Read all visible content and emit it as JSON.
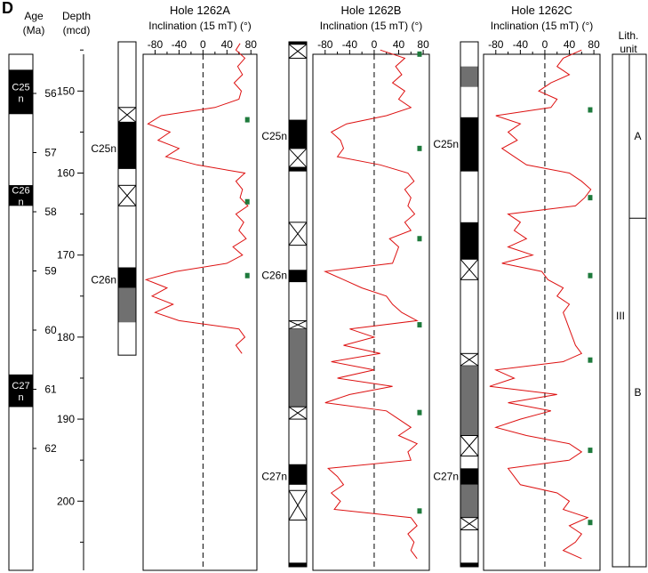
{
  "panel_label": "D",
  "header": {
    "age_label": "Age",
    "age_unit": "(Ma)",
    "depth_label": "Depth",
    "depth_unit": "(mcd)",
    "lith_label": "Lith.",
    "lith_unit": "unit"
  },
  "colors": {
    "normal": "#000000",
    "uncertain": "#707070",
    "curve": "#dd1111",
    "marker": "#1e7a3c"
  },
  "age_axis": {
    "ticks": [
      56,
      57,
      58,
      59,
      60,
      61,
      62
    ],
    "chrons": [
      {
        "label1": "C25",
        "label2": "n",
        "from": 55.6,
        "to": 56.35
      },
      {
        "label1": "C26",
        "label2": "n",
        "from": 57.55,
        "to": 57.9
      },
      {
        "label1": "C27",
        "label2": "n",
        "from": 60.75,
        "to": 61.3
      }
    ]
  },
  "depth_axis": {
    "ticks": [
      150,
      160,
      170,
      180,
      190,
      200
    ],
    "range": [
      144,
      208
    ]
  },
  "lith_units": {
    "major": "III",
    "sub": [
      {
        "label": "A",
        "from": 144,
        "to": 165.5
      },
      {
        "label": "B",
        "from": 165.5,
        "to": 208
      }
    ]
  },
  "chart_data": [
    {
      "type": "line",
      "title": "Hole 1262A",
      "xlabel": "Inclination (15 mT) (°)",
      "xticks": [
        -80,
        -40,
        0,
        40,
        80
      ],
      "xlim": [
        -100,
        90
      ],
      "ylim": [
        144,
        208
      ],
      "chron_labels": [
        {
          "text": "C25n",
          "depth": 157
        },
        {
          "text": "C26n",
          "depth": 173
        }
      ],
      "polarity": [
        {
          "from": 144,
          "to": 152,
          "kind": "white"
        },
        {
          "from": 152,
          "to": 153.8,
          "kind": "x"
        },
        {
          "from": 153.8,
          "to": 159.5,
          "kind": "normal"
        },
        {
          "from": 159.5,
          "to": 161.5,
          "kind": "white"
        },
        {
          "from": 161.5,
          "to": 164,
          "kind": "x"
        },
        {
          "from": 164,
          "to": 171.5,
          "kind": "white"
        },
        {
          "from": 171.5,
          "to": 174,
          "kind": "normal"
        },
        {
          "from": 174,
          "to": 178.2,
          "kind": "uncertain"
        },
        {
          "from": 178.2,
          "to": 182.2,
          "kind": "white"
        }
      ],
      "markers": [
        153.5,
        163.5,
        172.5
      ],
      "series": [
        {
          "depth": [
            144.2,
            145,
            146,
            147,
            148,
            149,
            150,
            151,
            152,
            153,
            154,
            155,
            156,
            157,
            158,
            159,
            160,
            161,
            162,
            163,
            164,
            165,
            166,
            167,
            168,
            169,
            170,
            171,
            172,
            173,
            174,
            175,
            176,
            177,
            178,
            179,
            180,
            181,
            182
          ],
          "incl": [
            62,
            55,
            70,
            58,
            66,
            52,
            64,
            60,
            20,
            -70,
            -92,
            -55,
            -75,
            -40,
            -62,
            -10,
            70,
            55,
            66,
            62,
            75,
            55,
            68,
            60,
            72,
            50,
            66,
            40,
            -45,
            -95,
            -60,
            -85,
            -50,
            -80,
            -40,
            60,
            70,
            55,
            65
          ]
        }
      ]
    },
    {
      "type": "line",
      "title": "Hole 1262B",
      "xlabel": "Inclination (15 mT) (°)",
      "xticks": [
        -80,
        -40,
        0,
        40,
        80
      ],
      "xlim": [
        -100,
        90
      ],
      "ylim": [
        144,
        208
      ],
      "chron_labels": [
        {
          "text": "C25n",
          "depth": 155.5
        },
        {
          "text": "C26n",
          "depth": 172.5
        },
        {
          "text": "C27n",
          "depth": 197
        }
      ],
      "polarity": [
        {
          "from": 144,
          "to": 144.3,
          "kind": "normal"
        },
        {
          "from": 144.3,
          "to": 146,
          "kind": "x"
        },
        {
          "from": 146,
          "to": 153.5,
          "kind": "white"
        },
        {
          "from": 153.5,
          "to": 157,
          "kind": "normal"
        },
        {
          "from": 157,
          "to": 159.3,
          "kind": "x"
        },
        {
          "from": 159.3,
          "to": 159.8,
          "kind": "normal"
        },
        {
          "from": 159.8,
          "to": 166,
          "kind": "white"
        },
        {
          "from": 166,
          "to": 168.8,
          "kind": "x"
        },
        {
          "from": 168.8,
          "to": 171.8,
          "kind": "white"
        },
        {
          "from": 171.8,
          "to": 173.3,
          "kind": "normal"
        },
        {
          "from": 173.3,
          "to": 178,
          "kind": "white"
        },
        {
          "from": 178,
          "to": 179,
          "kind": "x"
        },
        {
          "from": 179,
          "to": 188.5,
          "kind": "uncertain"
        },
        {
          "from": 188.5,
          "to": 190,
          "kind": "x"
        },
        {
          "from": 190,
          "to": 195.5,
          "kind": "white"
        },
        {
          "from": 195.5,
          "to": 198,
          "kind": "normal"
        },
        {
          "from": 198,
          "to": 198.7,
          "kind": "white"
        },
        {
          "from": 198.7,
          "to": 202.3,
          "kind": "x"
        },
        {
          "from": 202.3,
          "to": 207.5,
          "kind": "white"
        },
        {
          "from": 207.5,
          "to": 208,
          "kind": "normal"
        }
      ],
      "markers": [
        145.5,
        157,
        168,
        178.5,
        189.2,
        201.2
      ],
      "series": [
        {
          "depth": [
            145,
            146,
            147,
            148,
            149,
            150,
            151,
            152,
            153,
            154,
            155,
            156,
            157,
            158,
            159,
            160,
            161,
            162,
            163,
            164,
            165,
            166,
            167,
            168,
            169,
            170,
            171,
            172,
            173,
            174,
            175,
            176,
            177,
            178,
            179,
            180,
            181,
            182,
            183,
            184,
            185,
            186,
            187,
            188,
            189,
            190,
            191,
            192,
            193,
            194,
            195,
            196,
            197,
            198,
            199,
            200,
            201,
            202,
            203,
            204,
            205,
            206,
            207
          ],
          "incl": [
            10,
            50,
            35,
            45,
            30,
            50,
            40,
            60,
            20,
            -45,
            -70,
            -55,
            -50,
            -60,
            10,
            55,
            65,
            50,
            60,
            55,
            66,
            50,
            60,
            25,
            40,
            35,
            30,
            -80,
            -50,
            -20,
            20,
            30,
            45,
            70,
            -40,
            0,
            -50,
            10,
            -70,
            0,
            -60,
            30,
            -40,
            -80,
            20,
            40,
            60,
            40,
            70,
            55,
            60,
            -75,
            -60,
            -50,
            -70,
            -55,
            -65,
            60,
            70,
            55,
            65,
            60,
            70
          ]
        }
      ]
    },
    {
      "type": "line",
      "title": "Hole 1262C",
      "xlabel": "Inclination (15 mT) (°)",
      "xticks": [
        -80,
        -40,
        0,
        40,
        80
      ],
      "xlim": [
        -100,
        90
      ],
      "ylim": [
        144,
        208
      ],
      "chron_labels": [
        {
          "text": "C25n",
          "depth": 156.5
        },
        {
          "text": "C27n",
          "depth": 197
        }
      ],
      "polarity": [
        {
          "from": 144,
          "to": 147,
          "kind": "white"
        },
        {
          "from": 147,
          "to": 149.5,
          "kind": "uncertain"
        },
        {
          "from": 149.5,
          "to": 153.2,
          "kind": "white"
        },
        {
          "from": 153.2,
          "to": 159.8,
          "kind": "normal"
        },
        {
          "from": 159.8,
          "to": 166,
          "kind": "white"
        },
        {
          "from": 166,
          "to": 170.5,
          "kind": "normal"
        },
        {
          "from": 170.5,
          "to": 173,
          "kind": "x"
        },
        {
          "from": 173,
          "to": 182,
          "kind": "white"
        },
        {
          "from": 182,
          "to": 183.5,
          "kind": "x"
        },
        {
          "from": 183.5,
          "to": 192,
          "kind": "uncertain"
        },
        {
          "from": 192,
          "to": 194.5,
          "kind": "x"
        },
        {
          "from": 194.5,
          "to": 196,
          "kind": "white"
        },
        {
          "from": 196,
          "to": 198,
          "kind": "normal"
        },
        {
          "from": 198,
          "to": 202,
          "kind": "uncertain"
        },
        {
          "from": 202,
          "to": 203.5,
          "kind": "x"
        },
        {
          "from": 203.5,
          "to": 207.5,
          "kind": "white"
        },
        {
          "from": 207.5,
          "to": 208,
          "kind": "normal"
        }
      ],
      "markers": [
        152.3,
        163,
        172.5,
        182.8,
        193.8,
        202.6
      ],
      "series": [
        {
          "depth": [
            145,
            146,
            147,
            148,
            149,
            150,
            151,
            152,
            153,
            154,
            155,
            156,
            157,
            158,
            159,
            160,
            161,
            162,
            163,
            164,
            165,
            166,
            167,
            168,
            169,
            170,
            171,
            172,
            173,
            174,
            175,
            176,
            177,
            178,
            179,
            180,
            181,
            182,
            183,
            184,
            185,
            186,
            187,
            188,
            189,
            190,
            191,
            192,
            193,
            194,
            195,
            196,
            197,
            198,
            199,
            200,
            201,
            202,
            203,
            204,
            205,
            206,
            207
          ],
          "incl": [
            60,
            30,
            20,
            40,
            10,
            -10,
            20,
            10,
            -80,
            -40,
            -60,
            -45,
            -70,
            -50,
            -30,
            40,
            60,
            75,
            65,
            50,
            -60,
            -40,
            -50,
            -30,
            -60,
            -20,
            -70,
            -5,
            5,
            30,
            20,
            40,
            30,
            35,
            40,
            45,
            50,
            60,
            30,
            -80,
            -50,
            -90,
            20,
            -60,
            10,
            -40,
            -80,
            -30,
            40,
            60,
            40,
            -60,
            -50,
            -40,
            20,
            40,
            30,
            70,
            40,
            60,
            50,
            30,
            60
          ]
        }
      ]
    }
  ]
}
